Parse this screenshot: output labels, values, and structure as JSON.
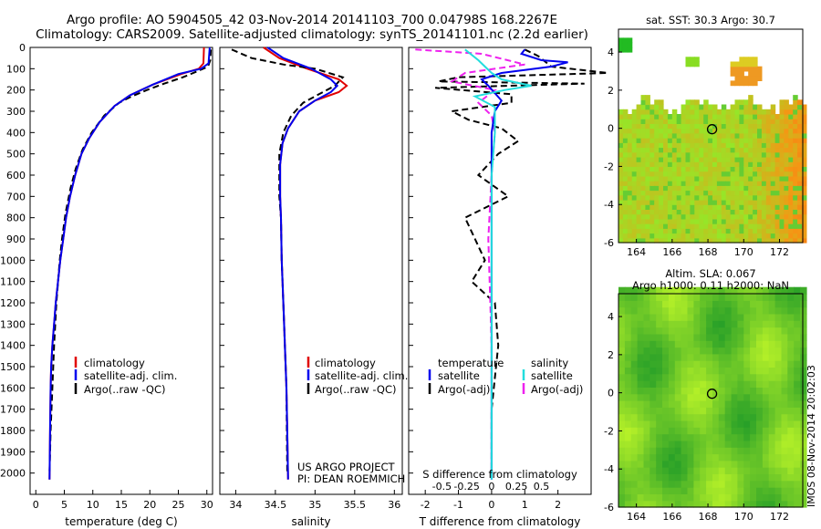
{
  "title": {
    "line1": "Argo profile: AO 5904505_42 03-Nov-2014 20141103_700 0.04798S 168.2267E",
    "line2": "Climatology: CARS2009. Satellite-adjusted climatology: synTS_20141101.nc (2.2d earlier)"
  },
  "side_stamp": "IMOS 08-Nov-2014 20:02:03",
  "credit": {
    "line1": "US ARGO PROJECT",
    "line2": "PI: DEAN ROEMMICH"
  },
  "colors": {
    "climatology": "#e00000",
    "satellite": "#0000ee",
    "argo": "#000000",
    "sal_satellite": "#22dddd",
    "sal_argo": "#ee22ee",
    "land": "#ffffff",
    "sst_low": "#44bb22",
    "sst_high": "#f08020",
    "sla_base": "#55dd22"
  },
  "legend_profiles": [
    "climatology",
    "satellite-adj. clim.",
    "Argo(..raw -QC)"
  ],
  "legend_diff": {
    "temp_header": "temperature",
    "sal_header": "salinity",
    "temp_items": [
      "satellite",
      "Argo(-adj)"
    ],
    "sal_items": [
      "satellite",
      "Argo(-adj)"
    ]
  },
  "chart_data": [
    {
      "type": "line",
      "name": "temperature-profile",
      "xlabel": "temperature (deg C)",
      "ylabel": "",
      "xlim": [
        -1,
        31
      ],
      "ylim": [
        2100,
        0
      ],
      "xticks": [
        0,
        5,
        10,
        15,
        20,
        25,
        30
      ],
      "yticks": [
        0,
        100,
        200,
        300,
        400,
        500,
        600,
        700,
        800,
        900,
        1000,
        1100,
        1200,
        1300,
        1400,
        1500,
        1600,
        1700,
        1800,
        1900,
        2000
      ],
      "series": [
        {
          "name": "climatology",
          "x": [
            29.5,
            29.4,
            28.6,
            25.5,
            20.5,
            16.5,
            13.8,
            11.2,
            9.4,
            8.0,
            6.9,
            6.0,
            5.3,
            4.8,
            4.3,
            3.9,
            3.5,
            3.2,
            2.9,
            2.7,
            2.6,
            2.5,
            2.4
          ],
          "depth": [
            0,
            75,
            100,
            125,
            175,
            225,
            275,
            350,
            425,
            500,
            600,
            700,
            800,
            900,
            1000,
            1100,
            1200,
            1300,
            1400,
            1500,
            1600,
            1800,
            2030
          ]
        },
        {
          "name": "satellite-adj. clim.",
          "x": [
            30.5,
            30.3,
            29.0,
            25.0,
            20.5,
            16.5,
            13.8,
            11.2,
            9.4,
            8.0,
            6.9,
            6.0,
            5.3,
            4.8,
            4.3,
            3.9,
            3.5,
            3.2,
            2.9,
            2.7,
            2.6,
            2.5,
            2.4
          ],
          "depth": [
            0,
            75,
            100,
            125,
            175,
            225,
            275,
            350,
            425,
            500,
            600,
            700,
            800,
            900,
            1000,
            1100,
            1200,
            1300,
            1400,
            1500,
            1600,
            1800,
            2030
          ]
        },
        {
          "name": "Argo(..raw -QC)",
          "x": [
            30.7,
            30.6,
            30.2,
            28.5,
            25.8,
            22.5,
            19.5,
            16.8,
            14.6,
            12.0,
            9.8,
            8.2,
            7.0,
            6.1,
            5.2,
            4.6,
            4.2,
            3.6,
            3.2,
            2.9,
            2.6,
            2.4
          ],
          "depth": [
            10,
            60,
            90,
            110,
            140,
            170,
            200,
            230,
            260,
            320,
            400,
            480,
            570,
            660,
            780,
            900,
            1000,
            1200,
            1400,
            1600,
            1800,
            2000
          ]
        }
      ]
    },
    {
      "type": "line",
      "name": "salinity-profile",
      "xlabel": "salinity",
      "ylabel": "",
      "xlim": [
        33.8,
        36.1
      ],
      "ylim": [
        2100,
        0
      ],
      "xticks": [
        34,
        34.5,
        35,
        35.5,
        36
      ],
      "series": [
        {
          "name": "climatology",
          "x": [
            34.35,
            34.55,
            34.9,
            35.3,
            35.4,
            35.3,
            35.0,
            34.8,
            34.66,
            34.59,
            34.56,
            34.56,
            34.57,
            34.58,
            34.6,
            34.62,
            34.64,
            34.65,
            34.66
          ],
          "depth": [
            0,
            50,
            100,
            150,
            180,
            210,
            250,
            300,
            380,
            450,
            550,
            700,
            800,
            1000,
            1200,
            1400,
            1600,
            1800,
            2030
          ]
        },
        {
          "name": "satellite-adj. clim.",
          "x": [
            34.4,
            34.6,
            34.95,
            35.2,
            35.28,
            35.2,
            35.0,
            34.8,
            34.66,
            34.59,
            34.56,
            34.56,
            34.57,
            34.58,
            34.6,
            34.62,
            34.64,
            34.65,
            34.66
          ],
          "depth": [
            0,
            50,
            100,
            150,
            180,
            210,
            250,
            300,
            380,
            450,
            550,
            700,
            800,
            1000,
            1200,
            1400,
            1600,
            1800,
            2030
          ]
        },
        {
          "name": "Argo(..raw -QC)",
          "x": [
            33.95,
            34.2,
            34.6,
            35.0,
            35.35,
            35.25,
            35.05,
            34.85,
            34.7,
            34.6,
            34.55,
            34.55,
            34.57,
            34.58,
            34.6,
            34.62,
            34.64,
            34.65
          ],
          "depth": [
            10,
            50,
            80,
            100,
            140,
            180,
            220,
            260,
            320,
            400,
            500,
            700,
            800,
            1000,
            1200,
            1400,
            1600,
            2000
          ]
        }
      ]
    },
    {
      "type": "line",
      "name": "difference-from-climatology",
      "xlabel": "T difference from climatology",
      "top_xlabel": "S difference from climatology",
      "xlim": [
        -2.5,
        3.0
      ],
      "ylim": [
        2100,
        0
      ],
      "xticks": [
        -2,
        -1,
        0,
        1,
        2
      ],
      "top_ticks": [
        -0.5,
        -0.25,
        0,
        0.25,
        0.5
      ],
      "top_tick_labels": [
        "-0.5",
        "-0.25",
        "0",
        "0.25",
        "0.5"
      ],
      "series": [
        {
          "name": "T satellite",
          "x": [
            1.0,
            0.9,
            1.5,
            2.3,
            1.8,
            0.3,
            -0.3,
            -0.1,
            0.3,
            0.1,
            0.0,
            0.0,
            0.0,
            0.0,
            0.0,
            0.0
          ],
          "depth": [
            10,
            30,
            60,
            70,
            90,
            120,
            150,
            180,
            250,
            300,
            400,
            600,
            1000,
            1500,
            1800,
            2030
          ]
        },
        {
          "name": "T Argo(-adj)",
          "x": [
            1.0,
            1.4,
            1.8,
            3.5,
            -1.0,
            -1.6,
            2.8,
            -1.7,
            0.6,
            0.6,
            -1.2,
            -0.7,
            0.3,
            0.8,
            0.2,
            -0.4,
            0.5,
            -0.8,
            -0.5,
            -0.2,
            -0.6,
            0.1,
            0.2,
            0.0,
            0.0
          ],
          "depth": [
            10,
            40,
            90,
            120,
            140,
            160,
            170,
            190,
            220,
            260,
            300,
            340,
            380,
            440,
            500,
            600,
            700,
            800,
            900,
            1000,
            1100,
            1200,
            1400,
            1700,
            2000
          ]
        },
        {
          "name": "S satellite",
          "x": [
            -0.8,
            -0.4,
            -0.2,
            0.0,
            0.3,
            1.2,
            0.4,
            -0.5,
            0.1,
            0.1,
            0.0,
            0.0,
            0.0,
            0.0
          ],
          "depth": [
            10,
            60,
            90,
            120,
            150,
            180,
            200,
            230,
            280,
            400,
            600,
            1000,
            1500,
            2030
          ]
        },
        {
          "name": "S Argo(-adj)",
          "x": [
            -2.3,
            -0.3,
            1.0,
            -0.8,
            -1.2,
            0.1,
            -0.4,
            0.0,
            0.1,
            0.0,
            -0.1,
            0.0,
            0.0
          ],
          "depth": [
            10,
            30,
            80,
            120,
            160,
            200,
            260,
            320,
            400,
            600,
            900,
            1400,
            2000
          ]
        }
      ]
    },
    {
      "type": "heatmap",
      "name": "sst-map",
      "title": "sat. SST: 30.3  Argo: 30.7",
      "xlim": [
        163.0,
        173.3
      ],
      "ylim": [
        -6,
        5.2
      ],
      "xticks": [
        164,
        166,
        168,
        170,
        172
      ],
      "yticks": [
        -6,
        -4,
        -2,
        0,
        2,
        4
      ],
      "marker": {
        "lon": 168.23,
        "lat": -0.05
      }
    },
    {
      "type": "heatmap",
      "name": "sla-map",
      "title": "Altim. SLA: 0.067",
      "subtitle": "Argo h1000: 0.11 h2000: NaN",
      "xlim": [
        163.0,
        173.3
      ],
      "ylim": [
        -6,
        5.2
      ],
      "xticks": [
        164,
        166,
        168,
        170,
        172
      ],
      "yticks": [
        -6,
        -4,
        -2,
        0,
        2,
        4
      ],
      "marker": {
        "lon": 168.23,
        "lat": -0.05
      }
    }
  ]
}
